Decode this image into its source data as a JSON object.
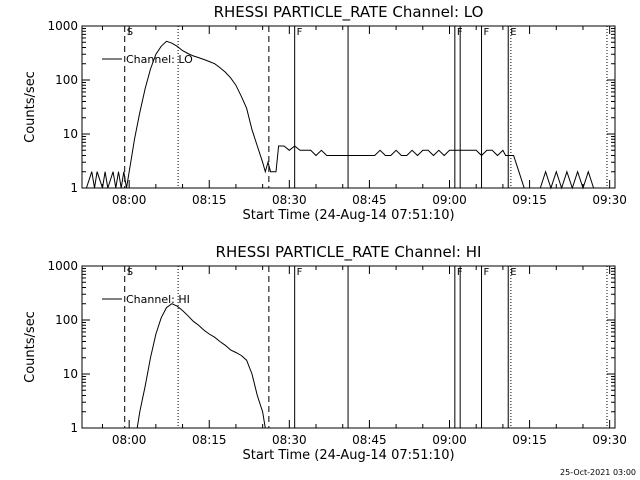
{
  "footer": {
    "date_stamp": "25-Oct-2021 03:00"
  },
  "chart_data": [
    {
      "type": "line",
      "title": "RHESSI PARTICLE_RATE Channel: LO",
      "xlabel": "Start Time (24-Aug-14 07:51:10)",
      "ylabel": "Counts/sec",
      "yscale": "log",
      "xlim": [
        "07:51:10",
        "09:31:00"
      ],
      "ylim": [
        1,
        1000
      ],
      "x_ticks": [
        "08:00",
        "08:15",
        "08:30",
        "08:45",
        "09:00",
        "09:15",
        "09:30"
      ],
      "y_ticks": [
        "1",
        "10",
        "100",
        "1000"
      ],
      "legend": "Channel: LO",
      "legend_position": "top-left",
      "flags": [
        {
          "label": "S",
          "time": "07:59:10",
          "style": "dashed"
        },
        {
          "label": "",
          "time": "08:09:10",
          "style": "dotted"
        },
        {
          "label": "",
          "time": "08:26:10",
          "style": "dashed"
        },
        {
          "label": "F",
          "time": "08:31:00",
          "style": "solid"
        },
        {
          "label": "",
          "time": "08:41:00",
          "style": "solid"
        },
        {
          "label": "F",
          "time": "09:01:00",
          "style": "solid"
        },
        {
          "label": "",
          "time": "09:02:00",
          "style": "solid"
        },
        {
          "label": "F",
          "time": "09:06:00",
          "style": "solid"
        },
        {
          "label": "E",
          "time": "09:11:00",
          "style": "solid"
        },
        {
          "label": "",
          "time": "09:11:30",
          "style": "dotted"
        },
        {
          "label": "",
          "time": "09:29:30",
          "style": "dotted"
        }
      ],
      "series": [
        {
          "name": "Channel: LO",
          "x": [
            "07:51:10",
            "07:52:00",
            "07:53:00",
            "07:53:30",
            "07:54:00",
            "07:55:00",
            "07:55:30",
            "07:56:00",
            "07:57:00",
            "07:57:30",
            "07:58:00",
            "07:58:30",
            "07:59:00",
            "07:59:30",
            "08:00:00",
            "08:01:00",
            "08:02:00",
            "08:03:00",
            "08:04:00",
            "08:05:00",
            "08:06:00",
            "08:07:00",
            "08:08:00",
            "08:09:00",
            "08:10:00",
            "08:11:00",
            "08:12:00",
            "08:13:00",
            "08:14:00",
            "08:15:00",
            "08:16:00",
            "08:17:00",
            "08:18:00",
            "08:19:00",
            "08:20:00",
            "08:21:00",
            "08:22:00",
            "08:23:00",
            "08:24:00",
            "08:25:00",
            "08:25:30",
            "08:26:00",
            "08:26:30",
            "08:27:00",
            "08:27:30",
            "08:28:00",
            "08:29:00",
            "08:30:00",
            "08:31:00",
            "08:32:00",
            "08:33:00",
            "08:34:00",
            "08:35:00",
            "08:36:00",
            "08:37:00",
            "08:38:00",
            "08:39:00",
            "08:40:00",
            "08:41:00",
            "08:42:00",
            "08:43:00",
            "08:44:00",
            "08:45:00",
            "08:46:00",
            "08:47:00",
            "08:48:00",
            "08:49:00",
            "08:50:00",
            "08:51:00",
            "08:52:00",
            "08:53:00",
            "08:54:00",
            "08:55:00",
            "08:56:00",
            "08:57:00",
            "08:58:00",
            "08:59:00",
            "09:00:00",
            "09:01:00",
            "09:02:00",
            "09:03:00",
            "09:04:00",
            "09:05:00",
            "09:06:00",
            "09:07:00",
            "09:08:00",
            "09:09:00",
            "09:10:00",
            "09:10:30",
            "09:11:00",
            "09:11:30",
            "09:12:00",
            "09:13:00",
            "09:14:00",
            "09:15:00",
            "09:16:00",
            "09:17:00",
            "09:18:00",
            "09:19:00",
            "09:20:00",
            "09:21:00",
            "09:22:00",
            "09:23:00",
            "09:24:00",
            "09:25:00",
            "09:26:00",
            "09:27:00",
            "09:28:00",
            "09:29:00",
            "09:30:00",
            "09:31:00"
          ],
          "y": [
            1,
            1,
            2,
            1,
            2,
            1,
            2,
            1,
            2,
            1,
            2,
            1,
            2,
            1,
            2,
            8,
            25,
            70,
            160,
            300,
            420,
            520,
            480,
            420,
            350,
            310,
            280,
            260,
            240,
            220,
            200,
            170,
            140,
            110,
            80,
            50,
            30,
            12,
            6,
            3,
            2,
            3,
            2,
            2,
            2,
            6,
            6,
            5,
            6,
            5,
            5,
            5,
            4,
            5,
            4,
            4,
            4,
            4,
            4,
            4,
            4,
            4,
            4,
            4,
            5,
            4,
            4,
            5,
            4,
            4,
            5,
            4,
            5,
            5,
            4,
            5,
            4,
            5,
            5,
            5,
            5,
            5,
            5,
            4,
            5,
            5,
            4,
            5,
            4,
            4,
            4,
            4,
            2,
            1,
            1,
            1,
            1,
            2,
            1,
            2,
            1,
            2,
            1,
            2,
            1,
            2,
            1,
            1,
            1,
            1,
            1
          ]
        }
      ]
    },
    {
      "type": "line",
      "title": "RHESSI PARTICLE_RATE Channel: HI",
      "xlabel": "Start Time (24-Aug-14 07:51:10)",
      "ylabel": "Counts/sec",
      "yscale": "log",
      "xlim": [
        "07:51:10",
        "09:31:00"
      ],
      "ylim": [
        1,
        1000
      ],
      "x_ticks": [
        "08:00",
        "08:15",
        "08:30",
        "08:45",
        "09:00",
        "09:15",
        "09:30"
      ],
      "y_ticks": [
        "1",
        "10",
        "100",
        "1000"
      ],
      "legend": "Channel: HI",
      "legend_position": "top-left",
      "flags": [
        {
          "label": "S",
          "time": "07:59:10",
          "style": "dashed"
        },
        {
          "label": "",
          "time": "08:09:10",
          "style": "dotted"
        },
        {
          "label": "",
          "time": "08:26:10",
          "style": "dashed"
        },
        {
          "label": "F",
          "time": "08:31:00",
          "style": "solid"
        },
        {
          "label": "",
          "time": "08:41:00",
          "style": "solid"
        },
        {
          "label": "F",
          "time": "09:01:00",
          "style": "solid"
        },
        {
          "label": "",
          "time": "09:02:00",
          "style": "solid"
        },
        {
          "label": "F",
          "time": "09:06:00",
          "style": "solid"
        },
        {
          "label": "E",
          "time": "09:11:00",
          "style": "solid"
        },
        {
          "label": "",
          "time": "09:11:30",
          "style": "dotted"
        },
        {
          "label": "",
          "time": "09:29:30",
          "style": "dotted"
        }
      ],
      "series": [
        {
          "name": "Channel: HI",
          "x": [
            "08:01:30",
            "08:02:00",
            "08:03:00",
            "08:04:00",
            "08:05:00",
            "08:06:00",
            "08:07:00",
            "08:08:00",
            "08:09:00",
            "08:10:00",
            "08:11:00",
            "08:12:00",
            "08:13:00",
            "08:14:00",
            "08:15:00",
            "08:16:00",
            "08:17:00",
            "08:18:00",
            "08:19:00",
            "08:20:00",
            "08:21:00",
            "08:22:00",
            "08:23:00",
            "08:24:00",
            "08:25:00",
            "08:25:30"
          ],
          "y": [
            1,
            2,
            6,
            20,
            55,
            110,
            170,
            200,
            180,
            150,
            120,
            95,
            80,
            65,
            55,
            48,
            40,
            34,
            28,
            25,
            22,
            18,
            10,
            4,
            2,
            1
          ]
        }
      ]
    }
  ]
}
